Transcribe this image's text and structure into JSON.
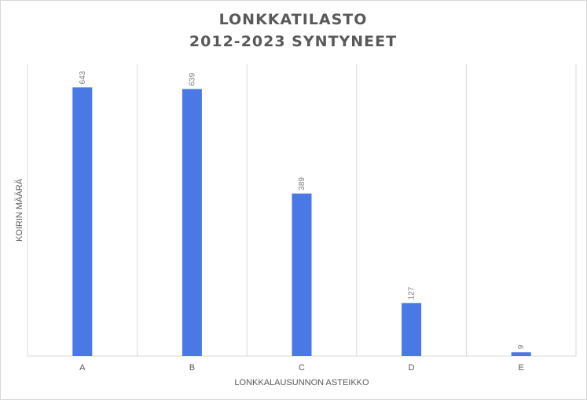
{
  "chart_data": {
    "type": "bar",
    "title": "LONKKATILASTO",
    "subtitle": "2012-2023 SYNTYNEET",
    "xlabel": "LONKKALAUSUNNON ASTEIKKO",
    "ylabel": "KOIRIN MÄÄRÄ",
    "categories": [
      "A",
      "B",
      "C",
      "D",
      "E"
    ],
    "values": [
      643,
      639,
      389,
      127,
      9
    ],
    "data_labels": [
      "643",
      "639",
      "389",
      "127",
      "9"
    ],
    "ylim": [
      0,
      700
    ],
    "grid": "vertical",
    "legend": "none",
    "colors": {
      "bar": "#4A79E5",
      "grid": "#d9d9d9",
      "text": "#595959",
      "data_label": "#7f7f7f"
    }
  }
}
